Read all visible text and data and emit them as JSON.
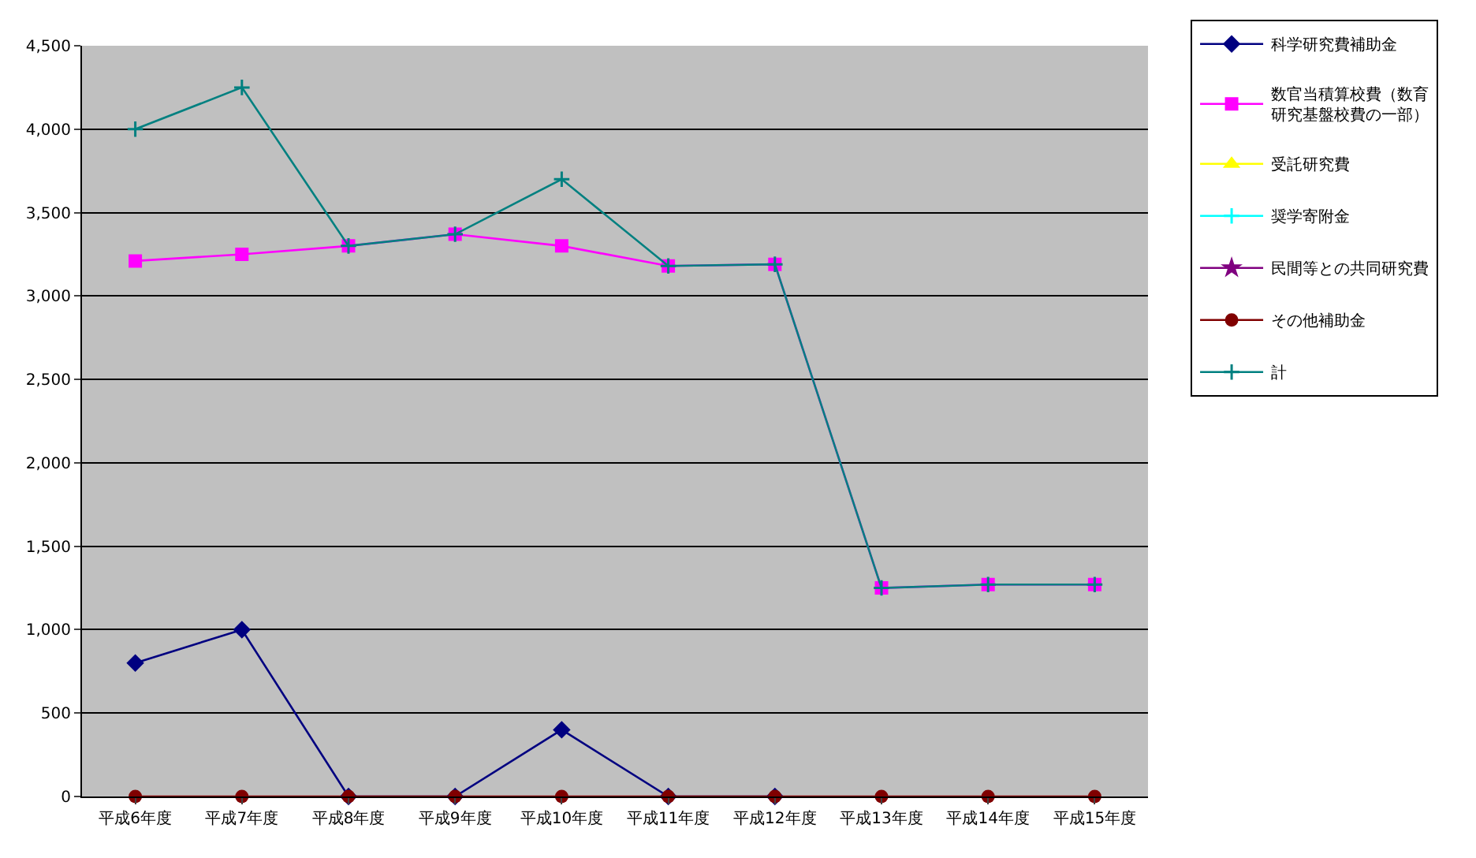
{
  "chart_data": {
    "type": "line",
    "categories": [
      "平成6年度",
      "平成7年度",
      "平成8年度",
      "平成9年度",
      "平成10年度",
      "平成11年度",
      "平成12年度",
      "平成13年度",
      "平成14年度",
      "平成15年度"
    ],
    "series": [
      {
        "name": "科学研究費補助金",
        "color": "#000080",
        "marker": "diamond",
        "values": [
          800,
          1000,
          0,
          0,
          400,
          0,
          0,
          null,
          null,
          null
        ]
      },
      {
        "name": "数官当積算校費（数育研究基盤校費の一部）",
        "color": "#ff00ff",
        "marker": "square",
        "values": [
          3210,
          3250,
          3300,
          3370,
          3300,
          3180,
          3190,
          1250,
          1270,
          1270
        ]
      },
      {
        "name": "受託研究費",
        "color": "#ffff00",
        "marker": "triangle",
        "values": [
          null,
          null,
          null,
          null,
          null,
          null,
          null,
          null,
          null,
          null
        ]
      },
      {
        "name": "奨学寄附金",
        "color": "#00ffff",
        "marker": "cross",
        "values": [
          null,
          null,
          null,
          null,
          null,
          null,
          null,
          null,
          null,
          null
        ]
      },
      {
        "name": "民間等との共同研究費",
        "color": "#800080",
        "marker": "star",
        "values": [
          null,
          null,
          null,
          null,
          null,
          null,
          null,
          null,
          null,
          null
        ]
      },
      {
        "name": "その他補助金",
        "color": "#800000",
        "marker": "circle",
        "values": [
          0,
          0,
          0,
          0,
          0,
          0,
          0,
          0,
          0,
          0
        ]
      },
      {
        "name": "計",
        "color": "#008080",
        "marker": "cross",
        "values": [
          4000,
          4250,
          3300,
          3370,
          3700,
          3180,
          3190,
          1250,
          1270,
          1270
        ]
      }
    ],
    "ylim": [
      0,
      4500
    ],
    "yticks": [
      {
        "value": 0,
        "label": "0"
      },
      {
        "value": 500,
        "label": "500"
      },
      {
        "value": 1000,
        "label": "1,000"
      },
      {
        "value": 1500,
        "label": "1,500"
      },
      {
        "value": 2000,
        "label": "2,000"
      },
      {
        "value": 2500,
        "label": "2,500"
      },
      {
        "value": 3000,
        "label": "3,000"
      },
      {
        "value": 3500,
        "label": "3,500"
      },
      {
        "value": 4000,
        "label": "4,000"
      },
      {
        "value": 4500,
        "label": "4,500"
      }
    ],
    "grid": "y",
    "legend": "right",
    "line_style": "solid"
  }
}
